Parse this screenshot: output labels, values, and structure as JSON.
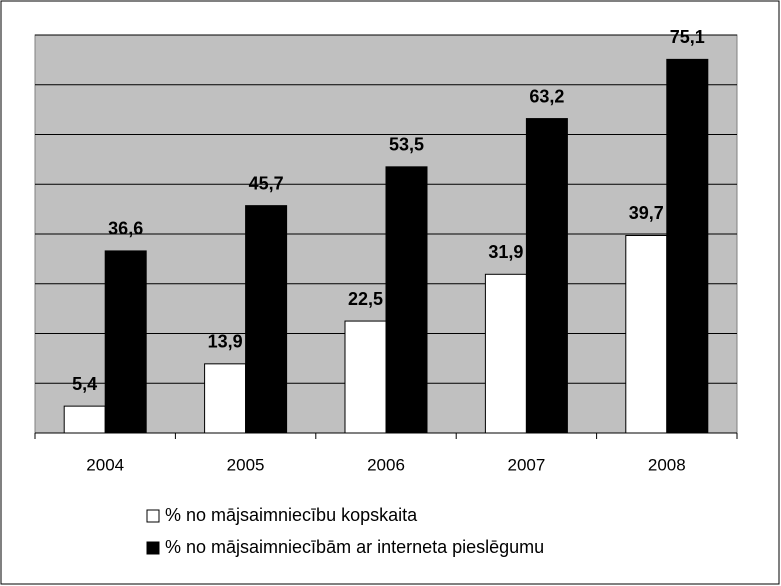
{
  "chart_data": {
    "type": "bar",
    "categories": [
      "2004",
      "2005",
      "2006",
      "2007",
      "2008"
    ],
    "series": [
      {
        "name": "% no mājsaimniecību kopskaita",
        "color": "#ffffff",
        "values": [
          5.4,
          13.9,
          22.5,
          31.9,
          39.7
        ],
        "value_labels": [
          "5,4",
          "13,9",
          "22,5",
          "31,9",
          "39,7"
        ]
      },
      {
        "name": "% no mājsaimniecībām ar interneta pieslēgumu",
        "color": "#000000",
        "values": [
          36.6,
          45.7,
          53.5,
          63.2,
          75.1
        ],
        "value_labels": [
          "36,6",
          "45,7",
          "53,5",
          "63,2",
          "75,1"
        ]
      }
    ],
    "ylim": [
      0,
      80
    ],
    "yticks": [
      0,
      10,
      20,
      30,
      40,
      50,
      60,
      70,
      80
    ],
    "grid": true,
    "plot_background": "#c0c0c0",
    "legend": "bottom"
  }
}
